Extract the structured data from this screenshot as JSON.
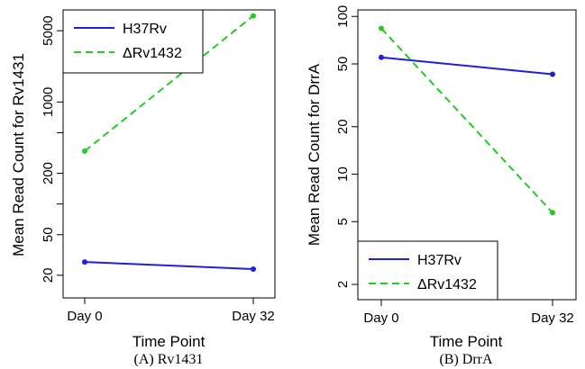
{
  "chart_data": [
    {
      "type": "line",
      "caption": "(A) Rv1431",
      "xlabel": "Time Point",
      "ylabel": "Mean Read Count for Rv1431",
      "categories": [
        "Day 0",
        "Day 32"
      ],
      "y_scale": "log",
      "ylim": [
        12,
        8000
      ],
      "y_ticks": [
        20,
        50,
        200,
        1000,
        5000
      ],
      "y_minor_ticks": [
        100,
        500
      ],
      "legend_position": "top-left",
      "series": [
        {
          "name": "H37Rv",
          "values": [
            27,
            23
          ],
          "color": "#1f1fdd",
          "dash": "solid"
        },
        {
          "name": "ΔRv1432",
          "values": [
            330,
            7000
          ],
          "color": "#22cc22",
          "dash": "dashed"
        }
      ]
    },
    {
      "type": "line",
      "caption": "(B) DrrA",
      "xlabel": "Time Point",
      "ylabel": "Mean Read Count for DrrA",
      "categories": [
        "Day 0",
        "Day 32"
      ],
      "y_scale": "log",
      "ylim": [
        1.6,
        110
      ],
      "y_ticks": [
        2,
        5,
        10,
        20,
        50,
        100
      ],
      "y_minor_ticks": [],
      "legend_position": "bottom-left",
      "series": [
        {
          "name": "H37Rv",
          "values": [
            55,
            43
          ],
          "color": "#1f1fdd",
          "dash": "solid"
        },
        {
          "name": "ΔRv1432",
          "values": [
            84,
            5.7
          ],
          "color": "#22cc22",
          "dash": "dashed"
        }
      ]
    }
  ]
}
